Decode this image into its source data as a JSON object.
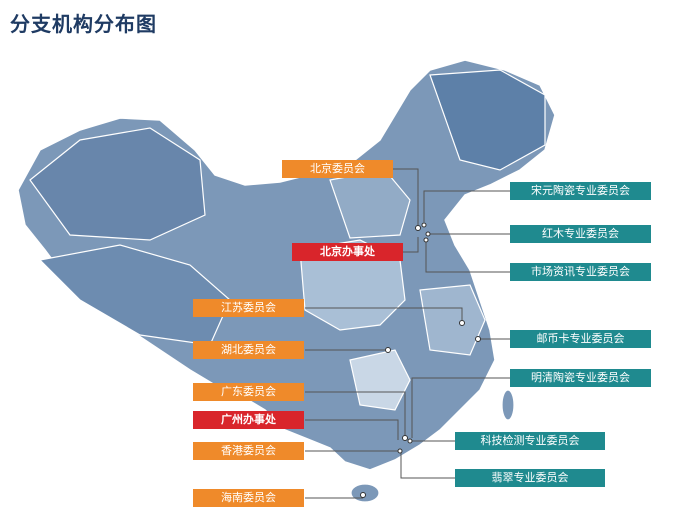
{
  "title": "分支机构分布图",
  "colors": {
    "orange": "#ef8a2a",
    "red": "#d9252b",
    "teal": "#1f8a8f",
    "map": "#6f8fb2",
    "map_light": "#a9bfd6"
  },
  "left_labels": {
    "beijing_committee": "北京委员会",
    "beijing_office": "北京办事处",
    "jiangsu_committee": "江苏委员会",
    "hubei_committee": "湖北委员会",
    "guangdong_committee": "广东委员会",
    "guangzhou_office": "广州办事处",
    "hongkong_committee": "香港委员会",
    "hainan_committee": "海南委员会"
  },
  "right_labels": {
    "song_yuan_porcelain": "宋元陶瓷专业委员会",
    "rosewood": "红木专业委员会",
    "market_info": "市场资讯专业委员会",
    "stamps_coins": "邮币卡专业委员会",
    "ming_qing_porcelain": "明清陶瓷专业委员会",
    "tech_testing": "科技检测专业委员会",
    "jade": "翡翠专业委员会"
  }
}
